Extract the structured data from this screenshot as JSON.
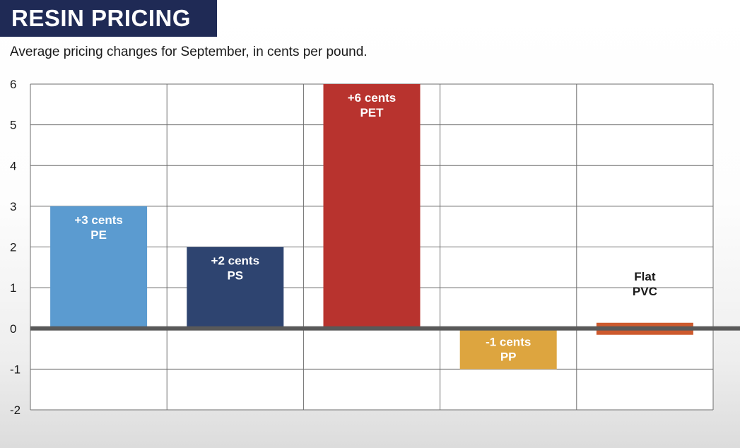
{
  "header": {
    "title": "RESIN PRICING",
    "subtitle": "Average pricing changes for September, in cents per pound."
  },
  "chart_data": {
    "type": "bar",
    "title": "RESIN PRICING",
    "subtitle": "Average pricing changes for September, in cents per pound.",
    "xlabel": "",
    "ylabel": "",
    "ylim": [
      -2,
      6
    ],
    "yticks": [
      6,
      5,
      4,
      3,
      2,
      1,
      0,
      -1,
      -2
    ],
    "grid": true,
    "categories": [
      "PE",
      "PS",
      "PET",
      "PP",
      "PVC"
    ],
    "values": [
      3,
      2,
      6,
      -1,
      0
    ],
    "bar_labels": [
      [
        "+3 cents",
        "PE"
      ],
      [
        "+2 cents",
        "PS"
      ],
      [
        "+6 cents",
        "PET"
      ],
      [
        "-1 cents",
        "PP"
      ],
      [
        "Flat",
        "PVC"
      ]
    ],
    "colors": [
      "#5b9bd0",
      "#2e4470",
      "#b8332e",
      "#dda53f",
      "#cd5a2e"
    ],
    "label_colors": [
      "#ffffff",
      "#ffffff",
      "#ffffff",
      "#ffffff",
      "#1a1a1a"
    ]
  }
}
